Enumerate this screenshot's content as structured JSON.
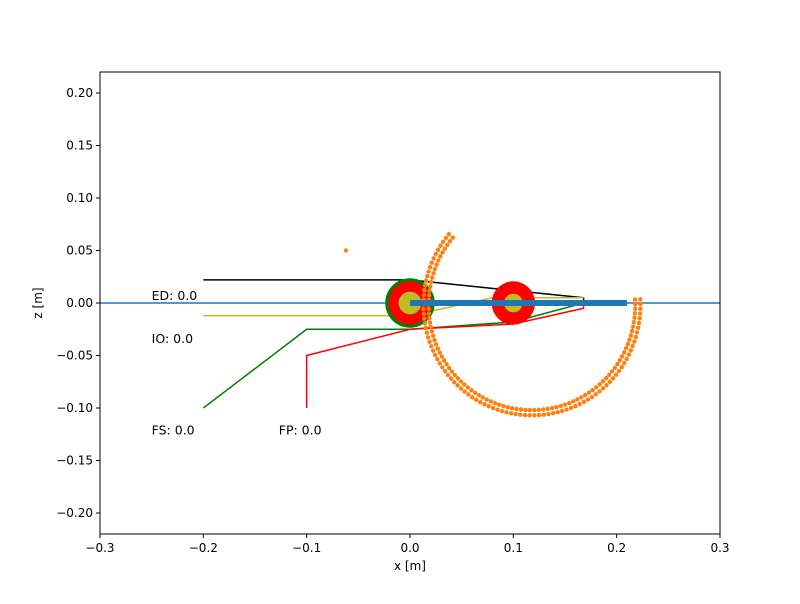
{
  "chart_data": {
    "type": "line",
    "xlabel": "x [m]",
    "ylabel": "z [m]",
    "xlim": [
      -0.3,
      0.3
    ],
    "ylim": [
      -0.22,
      0.22
    ],
    "xticks": [
      -0.3,
      -0.2,
      -0.1,
      0.0,
      0.1,
      0.2,
      0.3
    ],
    "xtick_labels": [
      "−0.3",
      "−0.2",
      "−0.1",
      "0.0",
      "0.1",
      "0.2",
      "0.3"
    ],
    "yticks": [
      0.2,
      0.15,
      0.1,
      0.05,
      0.0,
      -0.05,
      -0.1,
      -0.15,
      -0.2
    ],
    "ytick_labels": [
      "0.20",
      "0.15",
      "0.10",
      "0.05",
      "0.00",
      "−0.05",
      "−0.10",
      "−0.15",
      "−0.20"
    ],
    "grid": false,
    "annotations": [
      {
        "id": "ed",
        "text": "ED: 0.0",
        "x": -0.25,
        "y": 0.003
      },
      {
        "id": "io",
        "text": "IO: 0.0",
        "x": -0.25,
        "y": -0.038
      },
      {
        "id": "fs",
        "text": "FS: 0.0",
        "x": -0.25,
        "y": -0.125
      },
      {
        "id": "fp",
        "text": "FP: 0.0",
        "x": -0.127,
        "y": -0.125
      }
    ],
    "series": [
      {
        "color": "#1f77b4",
        "kind": "hline",
        "y": 0.0
      },
      {
        "color": "#000000",
        "kind": "line",
        "x": [
          -0.2,
          0.0,
          0.168,
          0.168
        ],
        "y": [
          0.022,
          0.022,
          0.005,
          0.0
        ]
      },
      {
        "color": "#bcbd22",
        "kind": "line",
        "x": [
          -0.2,
          0.0,
          0.08,
          0.168
        ],
        "y": [
          -0.012,
          -0.012,
          0.005,
          0.005
        ]
      },
      {
        "color": "#008000",
        "kind": "line",
        "x": [
          -0.2,
          -0.1,
          0.0,
          0.1,
          0.168
        ],
        "y": [
          -0.1,
          -0.025,
          -0.025,
          -0.018,
          0.0
        ]
      },
      {
        "color": "#ff0000",
        "kind": "line",
        "x": [
          -0.1,
          -0.1,
          0.0,
          0.1,
          0.168,
          0.168
        ],
        "y": [
          -0.1,
          -0.05,
          -0.025,
          -0.02,
          -0.005,
          0.0
        ]
      },
      {
        "color": "#1f77b4",
        "kind": "thick-segment",
        "x": [
          0.0,
          0.21
        ],
        "y": [
          0.0,
          0.0
        ]
      },
      {
        "color": "#ff7f0e",
        "kind": "scatter-point",
        "x": [
          -0.062
        ],
        "y": [
          0.05
        ]
      },
      {
        "color": "#ff7f0e",
        "kind": "scatter-arc",
        "center": [
          0.118,
          -0.002
        ],
        "radius": 0.1,
        "start_deg": 3,
        "end_deg": -220
      },
      {
        "color": "#ff7f0e",
        "kind": "scatter-arc",
        "center": [
          0.118,
          -0.002
        ],
        "radius": 0.105,
        "start_deg": 3,
        "end_deg": -220
      }
    ],
    "wheels": [
      {
        "x": 0.0,
        "y": 0.0,
        "rings": [
          {
            "r": 0.024,
            "color": "#008000"
          },
          {
            "r": 0.021,
            "color": "#ff0000"
          },
          {
            "r": 0.011,
            "color": "#bcbd22"
          }
        ]
      },
      {
        "x": 0.1,
        "y": 0.0,
        "rings": [
          {
            "r": 0.021,
            "color": "#ff0000"
          },
          {
            "r": 0.009,
            "color": "#bcbd22"
          }
        ]
      }
    ]
  }
}
